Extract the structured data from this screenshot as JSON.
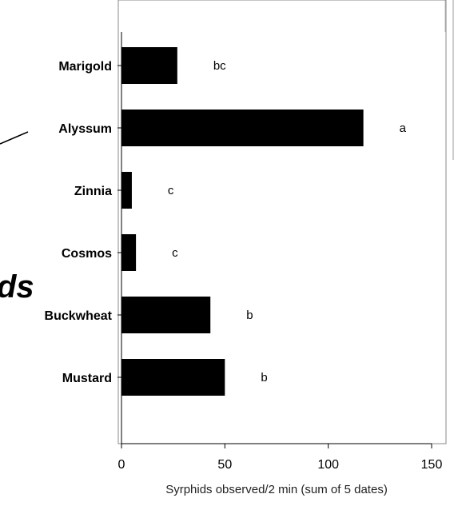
{
  "overlay_fragment": "ds",
  "chart_data": {
    "type": "bar",
    "orientation": "horizontal",
    "categories": [
      "Marigold",
      "Alyssum",
      "Zinnia",
      "Cosmos",
      "Buckwheat",
      "Mustard"
    ],
    "values": [
      27,
      117,
      5,
      7,
      43,
      50
    ],
    "significance_letters": [
      "bc",
      "a",
      "c",
      "c",
      "b",
      "b"
    ],
    "xlabel": "Syrphids observed/2 min (sum of 5 dates)",
    "xlim": [
      0,
      150
    ],
    "xticks": [
      0,
      50,
      100,
      150
    ],
    "bar_color": "#000000",
    "grid": false
  }
}
